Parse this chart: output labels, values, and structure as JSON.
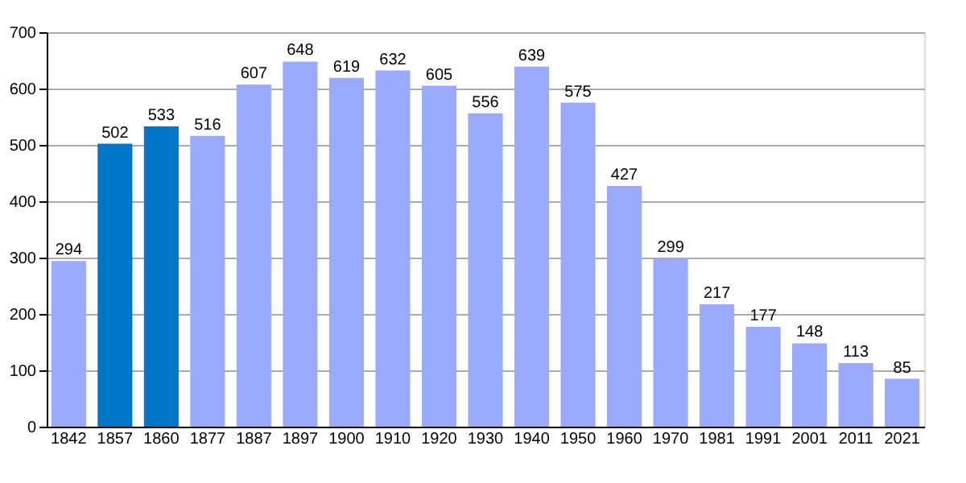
{
  "chart_data": {
    "type": "bar",
    "categories": [
      "1842",
      "1857",
      "1860",
      "1877",
      "1887",
      "1897",
      "1900",
      "1910",
      "1920",
      "1930",
      "1940",
      "1950",
      "1960",
      "1970",
      "1981",
      "1991",
      "2001",
      "2011",
      "2021"
    ],
    "values": [
      294,
      502,
      533,
      516,
      607,
      648,
      619,
      632,
      605,
      556,
      639,
      575,
      427,
      299,
      217,
      177,
      148,
      113,
      85
    ],
    "colors": [
      "#99aaff",
      "#0077c8",
      "#0077c8",
      "#99aaff",
      "#99aaff",
      "#99aaff",
      "#99aaff",
      "#99aaff",
      "#99aaff",
      "#99aaff",
      "#99aaff",
      "#99aaff",
      "#99aaff",
      "#99aaff",
      "#99aaff",
      "#99aaff",
      "#99aaff",
      "#99aaff",
      "#99aaff"
    ],
    "ylim": [
      0,
      700
    ],
    "yticks": [
      0,
      100,
      200,
      300,
      400,
      500,
      600,
      700
    ],
    "grid": "y",
    "data_labels": true
  }
}
